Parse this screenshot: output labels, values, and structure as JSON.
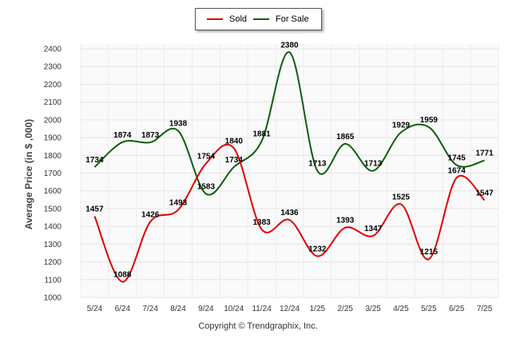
{
  "chart_data": {
    "type": "line",
    "title": "",
    "xlabel": "",
    "ylabel": "Average Price (in $ ,000)",
    "ylim": [
      1000,
      2400
    ],
    "yticks": [
      1000,
      1100,
      1200,
      1300,
      1400,
      1500,
      1600,
      1700,
      1800,
      1900,
      2000,
      2100,
      2200,
      2300,
      2400
    ],
    "grid": true,
    "legend_position": "top-center",
    "categories": [
      "5/24",
      "6/24",
      "7/24",
      "8/24",
      "9/24",
      "10/24",
      "11/24",
      "12/24",
      "1/25",
      "2/25",
      "3/25",
      "4/25",
      "5/25",
      "6/25",
      "7/25"
    ],
    "series": [
      {
        "name": "Sold",
        "color": "#e00000",
        "values": [
          1457,
          1088,
          1426,
          1493,
          1754,
          1840,
          1383,
          1436,
          1232,
          1393,
          1347,
          1525,
          1215,
          1674,
          1547
        ]
      },
      {
        "name": "For Sale",
        "color": "#0b5e0b",
        "values": [
          1734,
          1874,
          1873,
          1938,
          1583,
          1734,
          1881,
          2380,
          1713,
          1865,
          1713,
          1929,
          1959,
          1745,
          1771
        ]
      }
    ]
  },
  "footer": {
    "copyright": "Copyright © Trendgraphix, Inc."
  }
}
